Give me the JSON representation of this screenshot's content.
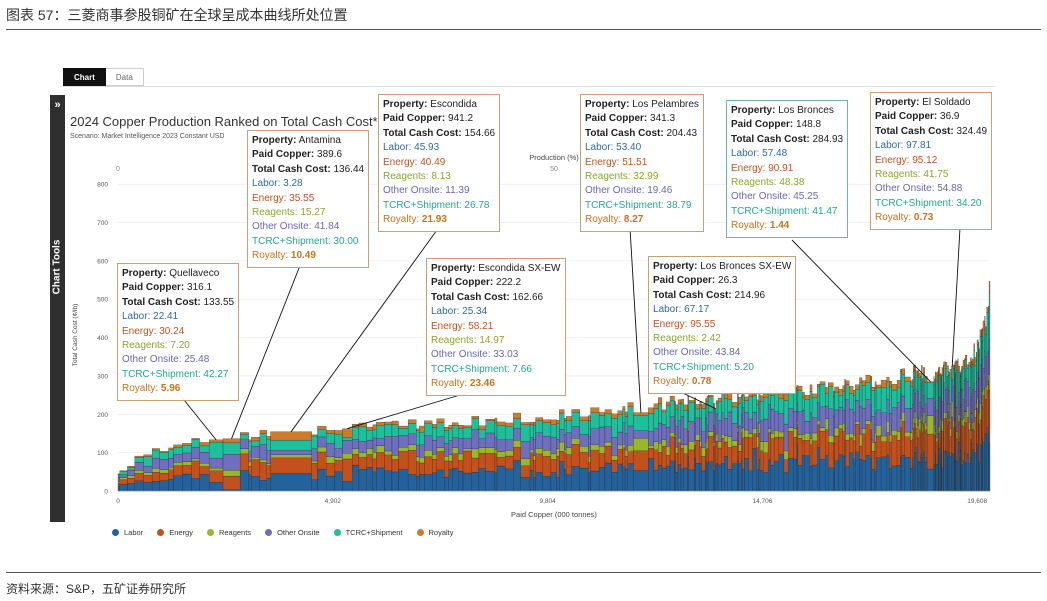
{
  "figure": {
    "title": "图表 57：三菱商事参股铜矿在全球呈成本曲线所处位置",
    "source": "资料来源：S&P，五矿证券研究所"
  },
  "tabs": [
    {
      "label": "Chart",
      "active": true
    },
    {
      "label": "Data",
      "active": false
    }
  ],
  "toolbar": {
    "label": "Chart Tools",
    "chevron": "»"
  },
  "colors": {
    "labor": "#24629b",
    "energy": "#c4511c",
    "reagents": "#9ab72b",
    "other_onsite": "#6f6fbf",
    "tcrc_shipment": "#1fbf9c",
    "royalty": "#cf7a2b"
  },
  "chart_data": {
    "type": "bar",
    "title": "2024 Copper Production Ranked on Total Cash Cost*",
    "subtitle": "Scenario: Market Intelligence 2023 Constant USD",
    "xlabel": "Paid Copper (000 tonnes)",
    "ylabel": "Total Cash Cost (¢/lb)",
    "xlim": [
      0,
      19900
    ],
    "ylim": [
      0,
      850
    ],
    "x_ticks": [
      "0",
      "4,902",
      "9,804",
      "14,706",
      "19,608"
    ],
    "y_ticks": [
      "0",
      "100",
      "200",
      "300",
      "400",
      "500",
      "600",
      "700",
      "800"
    ],
    "top_axis": {
      "label": "Production (%)",
      "ticks": [
        "0",
        "50"
      ]
    },
    "legend": [
      "Labor",
      "Energy",
      "Reagents",
      "Other Onsite",
      "TCRC+Shipment",
      "Royalty"
    ],
    "components": [
      "labor",
      "energy",
      "reagents",
      "other_onsite",
      "tcrc_shipment",
      "royalty"
    ],
    "curve_estimate": {
      "cumulative_paid_copper": [
        0,
        500,
        1000,
        1500,
        2000,
        3000,
        4000,
        5000,
        6000,
        7000,
        8000,
        9000,
        10000,
        11000,
        12000,
        13000,
        14000,
        15000,
        16000,
        17000,
        18000,
        18500,
        19000,
        19300,
        19500,
        19650,
        19800,
        19900
      ],
      "total_cash_cost": [
        40,
        90,
        110,
        125,
        133,
        145,
        155,
        162,
        168,
        175,
        182,
        190,
        198,
        208,
        222,
        236,
        250,
        262,
        274,
        286,
        300,
        310,
        320,
        330,
        350,
        380,
        430,
        560
      ]
    },
    "highlighted_mines": [
      {
        "property": "Quellaveco",
        "paid_copper": 316.1,
        "total_cash_cost": 133.55,
        "labor": 22.41,
        "energy": 30.24,
        "reagents": 7.2,
        "other_onsite": 25.48,
        "tcrc_shipment": 42.27,
        "royalty": 5.96
      },
      {
        "property": "Antamina",
        "paid_copper": 389.6,
        "total_cash_cost": 136.44,
        "labor": 3.28,
        "energy": 35.55,
        "reagents": 15.27,
        "other_onsite": 41.84,
        "tcrc_shipment": 30.0,
        "royalty": 10.49
      },
      {
        "property": "Escondida",
        "paid_copper": 941.2,
        "total_cash_cost": 154.66,
        "labor": 45.93,
        "energy": 40.49,
        "reagents": 8.13,
        "other_onsite": 11.39,
        "tcrc_shipment": 26.78,
        "royalty": 21.93
      },
      {
        "property": "Escondida SX-EW",
        "paid_copper": 222.2,
        "total_cash_cost": 162.66,
        "labor": 25.34,
        "energy": 58.21,
        "reagents": 14.97,
        "other_onsite": 33.03,
        "tcrc_shipment": 7.66,
        "royalty": 23.46
      },
      {
        "property": "Los Pelambres",
        "paid_copper": 341.3,
        "total_cash_cost": 204.43,
        "labor": 53.4,
        "energy": 51.51,
        "reagents": 32.99,
        "other_onsite": 19.46,
        "tcrc_shipment": 38.79,
        "royalty": 8.27
      },
      {
        "property": "Los Bronces SX-EW",
        "paid_copper": 26.3,
        "total_cash_cost": 214.96,
        "labor": 67.17,
        "energy": 95.55,
        "reagents": 2.42,
        "other_onsite": 43.84,
        "tcrc_shipment": 5.2,
        "royalty": 0.78
      },
      {
        "property": "Los Bronces",
        "paid_copper": 148.8,
        "total_cash_cost": 284.93,
        "labor": 57.48,
        "energy": 90.91,
        "reagents": 48.38,
        "other_onsite": 45.25,
        "tcrc_shipment": 41.47,
        "royalty": 1.44
      },
      {
        "property": "El Soldado",
        "paid_copper": 36.9,
        "total_cash_cost": 324.49,
        "labor": 97.81,
        "energy": 95.12,
        "reagents": 41.75,
        "other_onsite": 54.88,
        "tcrc_shipment": 34.2,
        "royalty": 0.73
      }
    ]
  },
  "callout_labels": {
    "property": "Property:",
    "paid_copper": "Paid Copper:",
    "total_cash_cost": "Total Cash Cost:",
    "labor": "Labor:",
    "energy": "Energy:",
    "reagents": "Reagents:",
    "other_onsite": "Other Onsite:",
    "tcrc_shipment": "TCRC+Shipment:",
    "royalty": "Royalty:"
  }
}
